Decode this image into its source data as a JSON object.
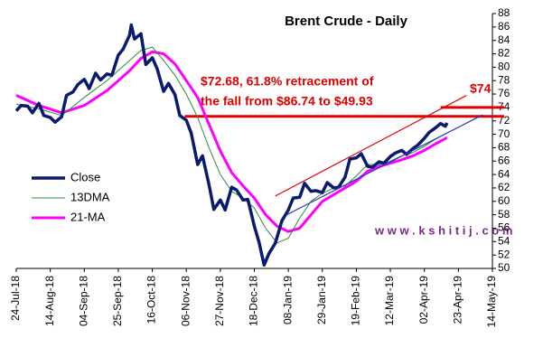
{
  "chart_data": {
    "type": "line",
    "title": "Brent Crude - Daily",
    "xlim": [
      "2018-07-24",
      "2019-05-14"
    ],
    "xticks": [
      {
        "value": "2018-07-24",
        "label": "24-Jul-18"
      },
      {
        "value": "2018-08-14",
        "label": "14-Aug-18"
      },
      {
        "value": "2018-09-04",
        "label": "04-Sep-18"
      },
      {
        "value": "2018-09-25",
        "label": "25-Sep-18"
      },
      {
        "value": "2018-10-16",
        "label": "16-Oct-18"
      },
      {
        "value": "2018-11-06",
        "label": "06-Nov-18"
      },
      {
        "value": "2018-11-27",
        "label": "27-Nov-18"
      },
      {
        "value": "2018-12-18",
        "label": "18-Dec-18"
      },
      {
        "value": "2019-01-08",
        "label": "08-Jan-19"
      },
      {
        "value": "2019-01-29",
        "label": "29-Jan-19"
      },
      {
        "value": "2019-02-19",
        "label": "19-Feb-19"
      },
      {
        "value": "2019-03-12",
        "label": "12-Mar-19"
      },
      {
        "value": "2019-04-02",
        "label": "02-Apr-19"
      },
      {
        "value": "2019-04-23",
        "label": "23-Apr-19"
      },
      {
        "value": "2019-05-14",
        "label": "14-May-19"
      }
    ],
    "ylim": [
      50,
      88
    ],
    "yticks": [
      50,
      52,
      54,
      56,
      58,
      60,
      62,
      64,
      66,
      68,
      70,
      72,
      74,
      76,
      78,
      80,
      82,
      84,
      86,
      88
    ],
    "series": [
      {
        "name": "Close",
        "color": "#0a1a6e",
        "width": 3.5,
        "x": [
          "2018-07-24",
          "2018-07-27",
          "2018-07-31",
          "2018-08-03",
          "2018-08-07",
          "2018-08-10",
          "2018-08-14",
          "2018-08-17",
          "2018-08-21",
          "2018-08-24",
          "2018-08-28",
          "2018-08-31",
          "2018-09-04",
          "2018-09-07",
          "2018-09-11",
          "2018-09-14",
          "2018-09-18",
          "2018-09-21",
          "2018-09-25",
          "2018-09-28",
          "2018-10-02",
          "2018-10-03",
          "2018-10-05",
          "2018-10-09",
          "2018-10-12",
          "2018-10-16",
          "2018-10-19",
          "2018-10-23",
          "2018-10-26",
          "2018-10-30",
          "2018-11-02",
          "2018-11-06",
          "2018-11-09",
          "2018-11-13",
          "2018-11-16",
          "2018-11-20",
          "2018-11-23",
          "2018-11-27",
          "2018-11-30",
          "2018-12-04",
          "2018-12-07",
          "2018-12-11",
          "2018-12-14",
          "2018-12-18",
          "2018-12-21",
          "2018-12-24",
          "2018-12-27",
          "2018-12-31",
          "2019-01-04",
          "2019-01-08",
          "2019-01-11",
          "2019-01-15",
          "2019-01-18",
          "2019-01-22",
          "2019-01-25",
          "2019-01-29",
          "2019-02-01",
          "2019-02-05",
          "2019-02-08",
          "2019-02-12",
          "2019-02-15",
          "2019-02-19",
          "2019-02-22",
          "2019-02-26",
          "2019-03-01",
          "2019-03-05",
          "2019-03-08",
          "2019-03-12",
          "2019-03-15",
          "2019-03-19",
          "2019-03-22",
          "2019-03-26",
          "2019-03-29",
          "2019-04-02",
          "2019-04-05",
          "2019-04-09",
          "2019-04-12",
          "2019-04-15",
          "2019-04-16"
        ],
        "values": [
          73.5,
          74.3,
          74.2,
          73.2,
          74.6,
          72.8,
          72.5,
          71.8,
          72.6,
          75.8,
          76.3,
          77.4,
          78.2,
          76.8,
          79.1,
          78.1,
          79.0,
          78.8,
          81.8,
          82.7,
          84.8,
          86.3,
          84.2,
          85.0,
          80.4,
          81.4,
          79.8,
          76.4,
          77.6,
          75.9,
          72.8,
          72.1,
          70.2,
          65.5,
          66.8,
          62.5,
          58.8,
          60.2,
          58.7,
          62.1,
          61.7,
          60.2,
          60.3,
          56.3,
          53.8,
          50.5,
          52.2,
          53.8,
          57.1,
          58.7,
          60.5,
          60.6,
          62.7,
          61.5,
          61.6,
          61.3,
          62.8,
          62.0,
          62.1,
          63.6,
          66.3,
          66.5,
          67.1,
          65.2,
          65.1,
          65.9,
          65.7,
          66.7,
          67.2,
          67.6,
          67.0,
          67.9,
          68.4,
          69.4,
          70.3,
          71.0,
          71.6,
          71.2,
          71.7
        ]
      },
      {
        "name": "13DMA",
        "color": "#2e8b3e",
        "width": 1,
        "x": [
          "2018-07-24",
          "2018-08-07",
          "2018-08-21",
          "2018-09-04",
          "2018-09-18",
          "2018-10-02",
          "2018-10-09",
          "2018-10-16",
          "2018-10-23",
          "2018-10-30",
          "2018-11-06",
          "2018-11-13",
          "2018-11-20",
          "2018-11-27",
          "2018-12-04",
          "2018-12-11",
          "2018-12-18",
          "2018-12-25",
          "2019-01-01",
          "2019-01-08",
          "2019-01-15",
          "2019-01-22",
          "2019-01-29",
          "2019-02-05",
          "2019-02-12",
          "2019-02-19",
          "2019-02-26",
          "2019-03-05",
          "2019-03-12",
          "2019-03-19",
          "2019-03-26",
          "2019-04-02",
          "2019-04-09",
          "2019-04-16"
        ],
        "values": [
          74.5,
          73.8,
          72.8,
          75.5,
          78.0,
          81.0,
          82.5,
          83.0,
          81.0,
          78.8,
          76.0,
          72.5,
          68.0,
          64.0,
          61.5,
          60.5,
          59.0,
          56.0,
          53.8,
          54.5,
          57.5,
          60.0,
          61.2,
          62.0,
          62.3,
          63.8,
          65.5,
          65.5,
          66.0,
          66.8,
          67.3,
          68.2,
          69.3,
          70.2
        ]
      },
      {
        "name": "21-MA",
        "color": "#ff00ff",
        "width": 3,
        "x": [
          "2018-07-24",
          "2018-08-07",
          "2018-08-21",
          "2018-09-04",
          "2018-09-18",
          "2018-10-02",
          "2018-10-09",
          "2018-10-16",
          "2018-10-23",
          "2018-10-30",
          "2018-11-06",
          "2018-11-13",
          "2018-11-20",
          "2018-11-27",
          "2018-12-04",
          "2018-12-11",
          "2018-12-18",
          "2018-12-25",
          "2019-01-01",
          "2019-01-08",
          "2019-01-15",
          "2019-01-22",
          "2019-01-29",
          "2019-02-05",
          "2019-02-12",
          "2019-02-19",
          "2019-02-26",
          "2019-03-05",
          "2019-03-12",
          "2019-03-19",
          "2019-03-26",
          "2019-04-02",
          "2019-04-09",
          "2019-04-16"
        ],
        "values": [
          75.8,
          74.3,
          73.2,
          74.3,
          76.5,
          79.5,
          81.3,
          82.3,
          82.0,
          80.5,
          78.0,
          75.5,
          71.5,
          67.5,
          64.3,
          62.3,
          60.5,
          58.0,
          56.3,
          55.5,
          56.0,
          58.0,
          60.0,
          61.0,
          62.0,
          63.0,
          64.5,
          65.2,
          65.7,
          66.2,
          66.8,
          67.6,
          68.6,
          69.5
        ]
      }
    ],
    "reference_lines": [
      {
        "value": 72.68,
        "color": "#e00000",
        "x_start": "2018-11-05"
      },
      {
        "value": 74,
        "color": "#e00000",
        "x_start": "2019-04-12"
      }
    ],
    "trend_lines": [
      {
        "color": "#e00000",
        "x": [
          "2018-12-31",
          "2019-04-28"
        ],
        "values": [
          60.8,
          75.8
        ]
      },
      {
        "color": "#1f3fc8",
        "x": [
          "2019-01-07",
          "2019-05-08"
        ],
        "values": [
          58.0,
          72.9
        ]
      }
    ],
    "annotations": [
      "$72.68, 61.8% retracement of",
      "the fall from $86.74 to $49.93",
      "$74"
    ],
    "watermark": "w w w . k s h i t i j . c o m"
  }
}
